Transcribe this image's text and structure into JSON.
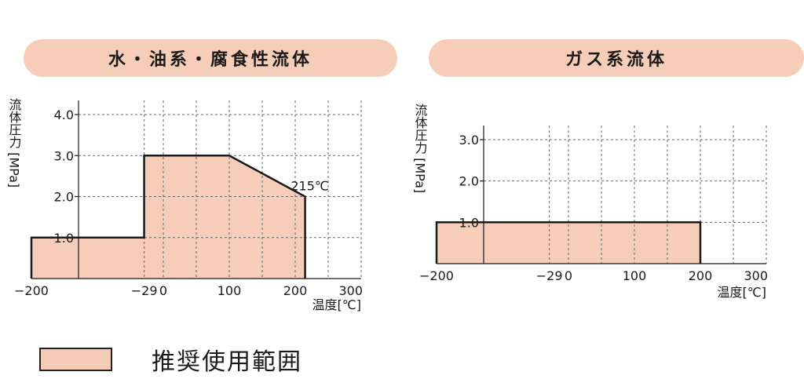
{
  "chart_data": [
    {
      "type": "area",
      "title": "水・油系・腐食性流体",
      "ylabel": "流体圧力 [MPa]",
      "xlabel": "温度[℃]",
      "xlim": [
        -200,
        300
      ],
      "ylim": [
        0,
        4.0
      ],
      "x_ticks": [
        -200,
        -29,
        0,
        100,
        200,
        300
      ],
      "x_tick_labels": [
        "−200",
        "−29",
        "0",
        "100",
        "200",
        "300"
      ],
      "y_ticks": [
        1.0,
        2.0,
        3.0,
        4.0
      ],
      "y_tick_labels": [
        "1.0",
        "2.0",
        "3.0",
        "4.0"
      ],
      "x_grid": [
        -29,
        0,
        50,
        100,
        150,
        200,
        250,
        300
      ],
      "y_grid": [
        1.0,
        2.0,
        3.0,
        4.0
      ],
      "grid": true,
      "region": [
        {
          "x": -200,
          "y": 0
        },
        {
          "x": -200,
          "y": 1.0
        },
        {
          "x": -29,
          "y": 1.0
        },
        {
          "x": -29,
          "y": 3.0
        },
        {
          "x": 100,
          "y": 3.0
        },
        {
          "x": 215,
          "y": 2.0
        },
        {
          "x": 215,
          "y": 0
        }
      ],
      "annotation": {
        "text": "215℃",
        "x": 215,
        "y": 2.0
      }
    },
    {
      "type": "area",
      "title": "ガス系流体",
      "ylabel": "流体圧力 [MPa]",
      "xlabel": "温度[℃]",
      "xlim": [
        -200,
        300
      ],
      "ylim": [
        0,
        3.0
      ],
      "x_ticks": [
        -200,
        -29,
        0,
        100,
        200,
        300
      ],
      "x_tick_labels": [
        "−200",
        "−29",
        "0",
        "100",
        "200",
        "300"
      ],
      "y_ticks": [
        1.0,
        2.0,
        3.0
      ],
      "y_tick_labels": [
        "1.0",
        "2.0",
        "3.0"
      ],
      "x_grid": [
        -29,
        0,
        50,
        100,
        150,
        200,
        250,
        300
      ],
      "y_grid": [
        1.0,
        2.0,
        3.0
      ],
      "grid": true,
      "region": [
        {
          "x": -200,
          "y": 0
        },
        {
          "x": -200,
          "y": 1.0
        },
        {
          "x": 200,
          "y": 1.0
        },
        {
          "x": 200,
          "y": 0
        }
      ]
    }
  ],
  "legend": {
    "label": "推奨使用範囲",
    "color": "#f4cbb6"
  },
  "colors": {
    "fill": "#f5cdb8",
    "pill": "#f6cdb8",
    "stroke": "#1a1a1a",
    "grid": "#666666"
  }
}
